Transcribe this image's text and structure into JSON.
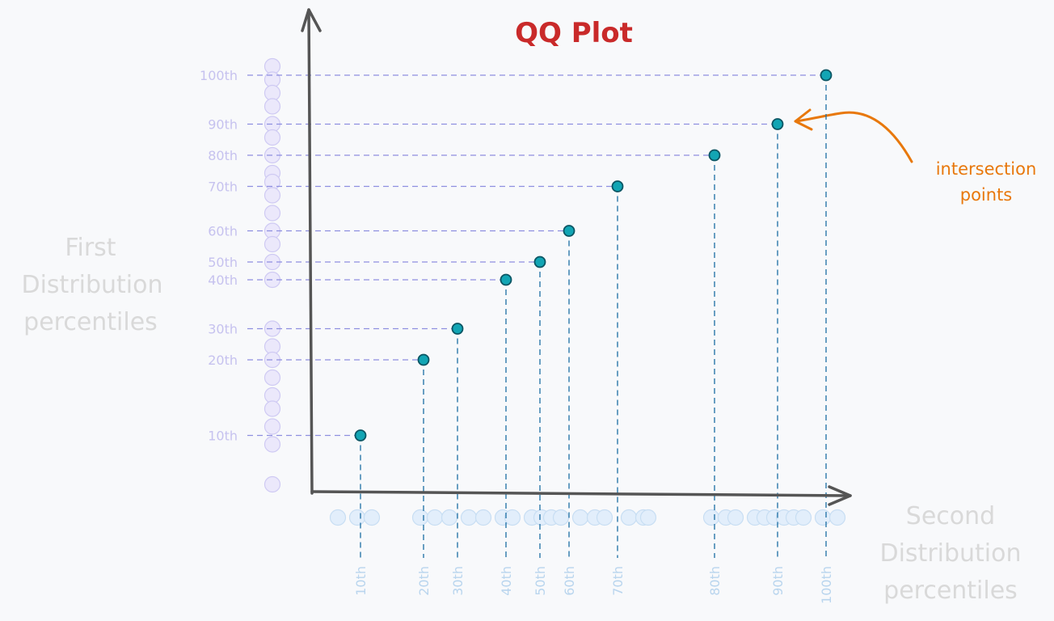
{
  "title": "QQ Plot",
  "y_axis_label": [
    "First",
    "Distribution",
    "percentiles"
  ],
  "x_axis_label": [
    "Second",
    "Distribution",
    "percentiles"
  ],
  "annotation": [
    "intersection",
    "points"
  ],
  "colors": {
    "background": "#f8f9fb",
    "title": "#c92a2a",
    "axis": "#555555",
    "guide_horizontal": "#8e8fe0",
    "guide_vertical": "#1c6ea4",
    "point_fill": "#12a5b4",
    "point_stroke": "#0b5563",
    "y_tick_text": "#c6c2ef",
    "x_tick_text": "#b9d5ee",
    "axis_label_text": "#d9d9d9",
    "annotation": "#e8780c",
    "y_sample_fill": "#ebe8fb",
    "y_sample_stroke": "#cfcaf3",
    "x_sample_fill": "#e2eefb",
    "x_sample_stroke": "#c8def3"
  },
  "chart_data": {
    "type": "scatter",
    "title": "QQ Plot",
    "xlabel": "Second Distribution percentiles",
    "ylabel": "First Distribution percentiles",
    "x_ticks": [
      "10th",
      "20th",
      "30th",
      "40th",
      "50th",
      "60th",
      "70th",
      "80th",
      "90th",
      "100th"
    ],
    "y_ticks": [
      "10th",
      "20th",
      "30th",
      "40th",
      "50th",
      "60th",
      "70th",
      "80th",
      "90th",
      "100th"
    ],
    "points": [
      {
        "label": "10th",
        "x": 0.1,
        "y": 0.13
      },
      {
        "label": "20th",
        "x": 0.23,
        "y": 0.3
      },
      {
        "label": "30th",
        "x": 0.3,
        "y": 0.37
      },
      {
        "label": "40th",
        "x": 0.4,
        "y": 0.48
      },
      {
        "label": "50th",
        "x": 0.47,
        "y": 0.52
      },
      {
        "label": "60th",
        "x": 0.53,
        "y": 0.59
      },
      {
        "label": "70th",
        "x": 0.63,
        "y": 0.69
      },
      {
        "label": "80th",
        "x": 0.83,
        "y": 0.76
      },
      {
        "label": "90th",
        "x": 0.96,
        "y": 0.83
      },
      {
        "label": "100th",
        "x": 1.06,
        "y": 0.94
      }
    ],
    "first_distribution_samples": [
      0.96,
      0.93,
      0.9,
      0.87,
      0.83,
      0.8,
      0.76,
      0.72,
      0.7,
      0.67,
      0.63,
      0.59,
      0.56,
      0.52,
      0.48,
      0.37,
      0.33,
      0.3,
      0.26,
      0.22,
      0.19,
      0.15,
      0.11,
      0.02
    ],
    "second_distribution_samples": [
      0.0,
      0.04,
      0.07,
      0.17,
      0.2,
      0.23,
      0.27,
      0.3,
      0.34,
      0.36,
      0.4,
      0.42,
      0.44,
      0.46,
      0.5,
      0.53,
      0.55,
      0.6,
      0.63,
      0.64,
      0.77,
      0.8,
      0.82,
      0.86,
      0.88,
      0.9,
      0.92,
      0.94,
      0.96,
      1.0,
      1.03
    ],
    "grid": false,
    "legend": "none"
  }
}
